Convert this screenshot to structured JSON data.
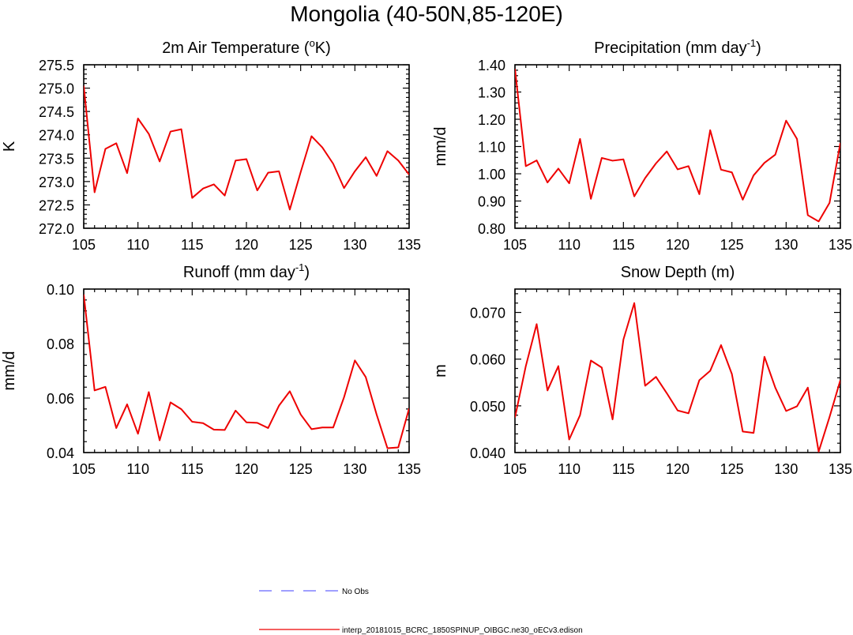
{
  "page": {
    "title": "Mongolia (40-50N,85-120E)"
  },
  "legend": [
    {
      "label": "No Obs",
      "color": "#6666ff",
      "style": "dashed"
    },
    {
      "label": "interp_20181015_BCRC_1850SPINUP_OIBGC.ne30_oECv3.edison",
      "color": "#ee0000",
      "style": "solid"
    }
  ],
  "chart_data": [
    {
      "type": "line",
      "title": "2m Air Temperature (",
      "title_sup": "o",
      "title_after": "K)",
      "ylabel": "K",
      "xlabel": "",
      "xlim": [
        105,
        135
      ],
      "ylim": [
        272.0,
        275.5
      ],
      "xticks": [
        105,
        110,
        115,
        120,
        125,
        130,
        135
      ],
      "yticks": [
        272.0,
        272.5,
        273.0,
        273.5,
        274.0,
        274.5,
        275.0,
        275.5
      ],
      "ytick_labels": [
        "272.0",
        "272.5",
        "273.0",
        "273.5",
        "274.0",
        "274.5",
        "275.0",
        "275.5"
      ],
      "grid": false,
      "series": [
        {
          "color": "#ee0000",
          "x": [
            105,
            106,
            107,
            108,
            109,
            110,
            111,
            112,
            113,
            114,
            115,
            116,
            117,
            118,
            119,
            120,
            121,
            122,
            123,
            124,
            125,
            126,
            127,
            128,
            129,
            130,
            131,
            132,
            133,
            134,
            135
          ],
          "y": [
            275.05,
            272.77,
            273.7,
            273.82,
            273.18,
            274.35,
            274.02,
            273.43,
            274.07,
            274.12,
            272.65,
            272.85,
            272.94,
            272.7,
            273.45,
            273.48,
            272.81,
            273.19,
            273.22,
            272.4,
            273.2,
            273.97,
            273.73,
            273.38,
            272.86,
            273.22,
            273.52,
            273.12,
            273.65,
            273.45,
            273.15
          ]
        }
      ]
    },
    {
      "type": "line",
      "title": "Precipitation (mm day",
      "title_sup": "-1",
      "title_after": ")",
      "ylabel": "mm/d",
      "xlabel": "",
      "xlim": [
        105,
        135
      ],
      "ylim": [
        0.8,
        1.4
      ],
      "xticks": [
        105,
        110,
        115,
        120,
        125,
        130,
        135
      ],
      "yticks": [
        0.8,
        0.9,
        1.0,
        1.1,
        1.2,
        1.3,
        1.4
      ],
      "ytick_labels": [
        "0.80",
        "0.90",
        "1.00",
        "1.10",
        "1.20",
        "1.30",
        "1.40"
      ],
      "grid": false,
      "series": [
        {
          "color": "#ee0000",
          "x": [
            105,
            106,
            107,
            108,
            109,
            110,
            111,
            112,
            113,
            114,
            115,
            116,
            117,
            118,
            119,
            120,
            121,
            122,
            123,
            124,
            125,
            126,
            127,
            128,
            129,
            130,
            131,
            132,
            133,
            134,
            135
          ],
          "y": [
            1.385,
            1.028,
            1.049,
            0.968,
            1.019,
            0.965,
            1.128,
            0.908,
            1.058,
            1.048,
            1.053,
            0.917,
            0.984,
            1.038,
            1.082,
            1.016,
            1.028,
            0.925,
            1.16,
            1.015,
            1.005,
            0.905,
            0.994,
            1.04,
            1.07,
            1.195,
            1.128,
            0.848,
            0.825,
            0.893,
            1.113
          ]
        }
      ]
    },
    {
      "type": "line",
      "title": "Runoff (mm day",
      "title_sup": "-1",
      "title_after": ")",
      "ylabel": "mm/d",
      "xlabel": "",
      "xlim": [
        105,
        135
      ],
      "ylim": [
        0.04,
        0.1
      ],
      "xticks": [
        105,
        110,
        115,
        120,
        125,
        130,
        135
      ],
      "yticks": [
        0.04,
        0.06,
        0.08,
        0.1
      ],
      "ytick_labels": [
        "0.04",
        "0.06",
        "0.08",
        "0.10"
      ],
      "grid": false,
      "series": [
        {
          "color": "#ee0000",
          "x": [
            105,
            106,
            107,
            108,
            109,
            110,
            111,
            112,
            113,
            114,
            115,
            116,
            117,
            118,
            119,
            120,
            121,
            122,
            123,
            124,
            125,
            126,
            127,
            128,
            129,
            130,
            131,
            132,
            133,
            134,
            135
          ],
          "y": [
            0.098,
            0.0628,
            0.0641,
            0.049,
            0.0577,
            0.0469,
            0.0622,
            0.0445,
            0.0584,
            0.0559,
            0.0513,
            0.0508,
            0.0484,
            0.0483,
            0.0554,
            0.0511,
            0.0509,
            0.049,
            0.0572,
            0.0625,
            0.054,
            0.0486,
            0.0492,
            0.0492,
            0.0603,
            0.0738,
            0.0677,
            0.054,
            0.0416,
            0.0419,
            0.0562
          ]
        }
      ]
    },
    {
      "type": "line",
      "title": "Snow Depth (m)",
      "title_sup": "",
      "title_after": "",
      "ylabel": "m",
      "xlabel": "",
      "xlim": [
        105,
        135
      ],
      "ylim": [
        0.04,
        0.075
      ],
      "xticks": [
        105,
        110,
        115,
        120,
        125,
        130,
        135
      ],
      "yticks": [
        0.04,
        0.05,
        0.06,
        0.07
      ],
      "ytick_labels": [
        "0.040",
        "0.050",
        "0.060",
        "0.070"
      ],
      "grid": false,
      "series": [
        {
          "color": "#ee0000",
          "x": [
            105,
            106,
            107,
            108,
            109,
            110,
            111,
            112,
            113,
            114,
            115,
            116,
            117,
            118,
            119,
            120,
            121,
            122,
            123,
            124,
            125,
            126,
            127,
            128,
            129,
            130,
            131,
            132,
            133,
            134,
            135
          ],
          "y": [
            0.0475,
            0.0585,
            0.0675,
            0.0533,
            0.0585,
            0.0428,
            0.048,
            0.0597,
            0.0582,
            0.0471,
            0.0642,
            0.072,
            0.0543,
            0.0562,
            0.0527,
            0.049,
            0.0484,
            0.0555,
            0.0575,
            0.063,
            0.0568,
            0.0445,
            0.0442,
            0.0605,
            0.0539,
            0.0489,
            0.0499,
            0.0539,
            0.0402,
            0.0476,
            0.0555
          ]
        }
      ]
    }
  ]
}
